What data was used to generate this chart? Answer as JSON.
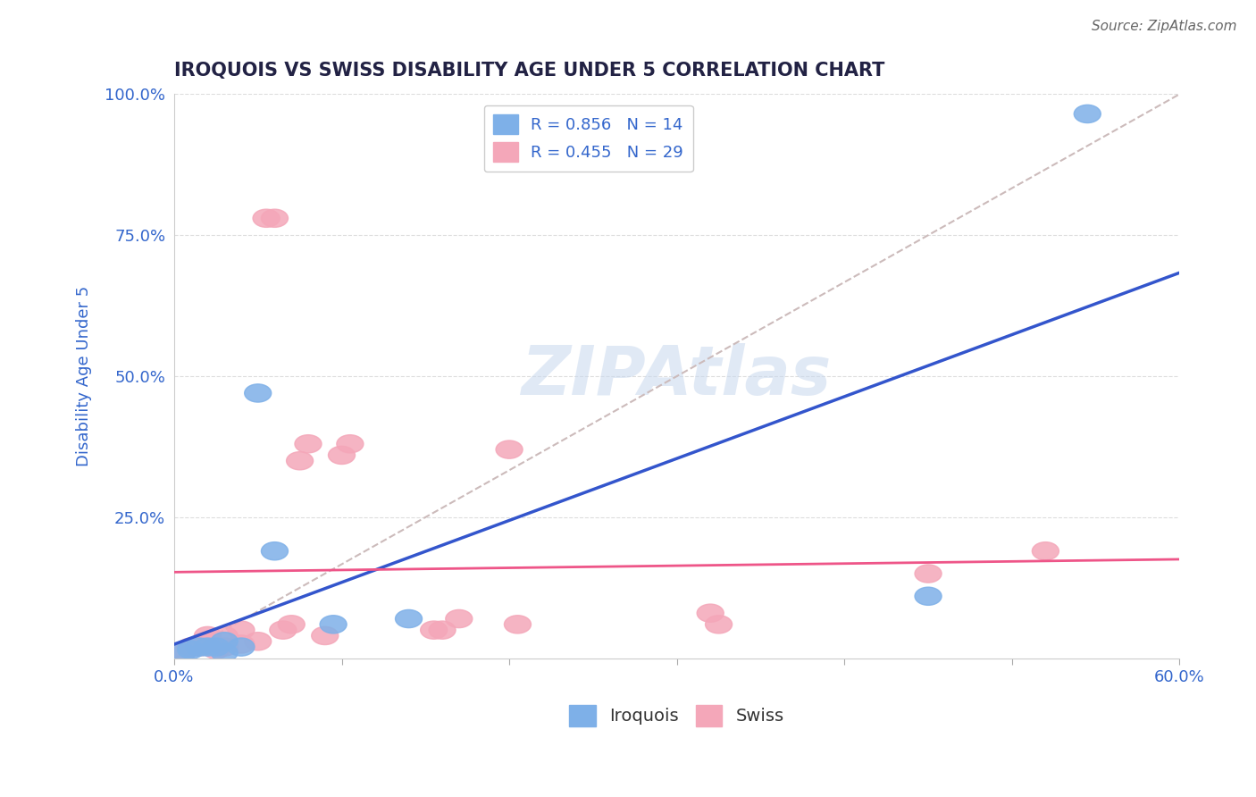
{
  "title": "IROQUOIS VS SWISS DISABILITY AGE UNDER 5 CORRELATION CHART",
  "source": "Source: ZipAtlas.com",
  "ylabel": "Disability Age Under 5",
  "xlim": [
    0.0,
    0.6
  ],
  "ylim": [
    0.0,
    1.0
  ],
  "xticks": [
    0.0,
    0.1,
    0.2,
    0.3,
    0.4,
    0.5,
    0.6
  ],
  "xticklabels": [
    "0.0%",
    "",
    "",
    "",
    "",
    "",
    "60.0%"
  ],
  "yticks": [
    0.0,
    0.25,
    0.5,
    0.75,
    1.0
  ],
  "yticklabels": [
    "",
    "25.0%",
    "50.0%",
    "75.0%",
    "100.0%"
  ],
  "iroquois_color": "#7EB0E8",
  "swiss_color": "#F4A7B9",
  "iroquois_line_color": "#3355CC",
  "swiss_line_color": "#EE5588",
  "ref_line_color": "#CCBBBB",
  "background_color": "#FFFFFF",
  "grid_color": "#DDDDDD",
  "title_color": "#222244",
  "axis_label_color": "#3366CC",
  "R_iroquois": 0.856,
  "N_iroquois": 14,
  "R_swiss": 0.455,
  "N_swiss": 29,
  "iroquois_x": [
    0.005,
    0.01,
    0.015,
    0.02,
    0.025,
    0.03,
    0.03,
    0.04,
    0.05,
    0.06,
    0.095,
    0.14,
    0.45,
    0.545
  ],
  "iroquois_y": [
    0.01,
    0.015,
    0.02,
    0.02,
    0.02,
    0.01,
    0.03,
    0.02,
    0.47,
    0.19,
    0.06,
    0.07,
    0.11,
    0.965
  ],
  "swiss_x": [
    0.005,
    0.01,
    0.015,
    0.02,
    0.02,
    0.025,
    0.03,
    0.03,
    0.04,
    0.04,
    0.05,
    0.055,
    0.06,
    0.065,
    0.07,
    0.075,
    0.08,
    0.09,
    0.1,
    0.105,
    0.155,
    0.16,
    0.17,
    0.2,
    0.205,
    0.32,
    0.325,
    0.45,
    0.52
  ],
  "swiss_y": [
    0.01,
    0.02,
    0.02,
    0.03,
    0.04,
    0.015,
    0.02,
    0.04,
    0.025,
    0.05,
    0.03,
    0.78,
    0.78,
    0.05,
    0.06,
    0.35,
    0.38,
    0.04,
    0.36,
    0.38,
    0.05,
    0.05,
    0.07,
    0.37,
    0.06,
    0.08,
    0.06,
    0.15,
    0.19
  ],
  "watermark": "ZIPAtlas",
  "legend_iroquois_text": "R = 0.856   N = 14",
  "legend_swiss_text": "R = 0.455   N = 29"
}
